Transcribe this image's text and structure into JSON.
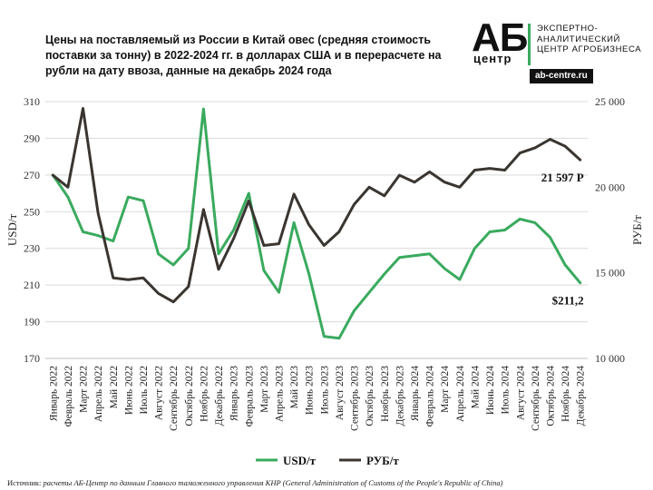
{
  "title": "Цены на поставляемый из России в Китай овес (средняя стоимость поставки за тонну) в 2022-2024 гг. в долларах США и в перерасчете на рубли на дату ввоза, данные на декабрь 2024 года",
  "logo": {
    "mark": "АБ",
    "sub": "центр",
    "text": "ЭКСПЕРТНО-АНАЛИТИЧЕСКИЙ ЦЕНТР АГРОБИЗНЕСА",
    "site": "ab-centre.ru"
  },
  "source": {
    "label": "Источник:",
    "text": "расчеты АБ-Центр по данным Главного таможенного управления КНР (General Administration of Customs of the People's Republic of China)"
  },
  "chart_data": {
    "type": "line",
    "categories": [
      "Январь 2022",
      "Февраль 2022",
      "Март 2022",
      "Апрель 2022",
      "Май 2022",
      "Июнь 2022",
      "Июль 2022",
      "Август 2022",
      "Сентябрь 2022",
      "Октябрь 2022",
      "Ноябрь 2022",
      "Декабрь 2022",
      "Январь 2023",
      "Февраль 2023",
      "Март 2023",
      "Апрель 2023",
      "Май 2023",
      "Июнь 2023",
      "Июль 2023",
      "Август 2023",
      "Сентябрь 2023",
      "Октябрь 2023",
      "Ноябрь 2023",
      "Декабрь 2023",
      "Январь 2024",
      "Февраль 2024",
      "Март 2024",
      "Апрель 2024",
      "Май 2024",
      "Июнь 2024",
      "Июль 2024",
      "Август 2024",
      "Сентябрь 2024",
      "Октябрь 2024",
      "Ноябрь 2024",
      "Декабрь 2024"
    ],
    "ylabel_left": "USD/т",
    "ylabel_right": "РУБ/т",
    "left_axis": {
      "min": 170,
      "max": 310,
      "ticks": [
        "170",
        "190",
        "210",
        "230",
        "250",
        "270",
        "290",
        "310"
      ]
    },
    "right_axis": {
      "min": 10000,
      "max": 25000,
      "ticks": [
        "10 000",
        "15 000",
        "20 000",
        "25 000"
      ]
    },
    "grid": true,
    "legend_position": "bottom",
    "series": [
      {
        "name": "USD/т",
        "axis": "left",
        "color": "#3aaa5e",
        "values": [
          270,
          258,
          239,
          237,
          234,
          258,
          256,
          227,
          221,
          230,
          306,
          227,
          240,
          260,
          218,
          206,
          244,
          216,
          182,
          181,
          196,
          206,
          216,
          225,
          226,
          227,
          219,
          213,
          230,
          239,
          240,
          246,
          244,
          236,
          221,
          211.2
        ]
      },
      {
        "name": "РУБ/т",
        "axis": "right",
        "color": "#3a3530",
        "values": [
          20700,
          20000,
          24600,
          18500,
          14700,
          14600,
          14700,
          13800,
          13300,
          14200,
          18700,
          15200,
          17000,
          19200,
          16600,
          16700,
          19600,
          17800,
          16600,
          17400,
          19000,
          20000,
          19500,
          20700,
          20300,
          20900,
          20300,
          20000,
          21000,
          21100,
          21000,
          22000,
          22300,
          22800,
          22400,
          21597
        ]
      }
    ],
    "annotations": [
      {
        "series": "USD/т",
        "text": "$211,2"
      },
      {
        "series": "РУБ/т",
        "text": "21 597 Р"
      }
    ]
  }
}
